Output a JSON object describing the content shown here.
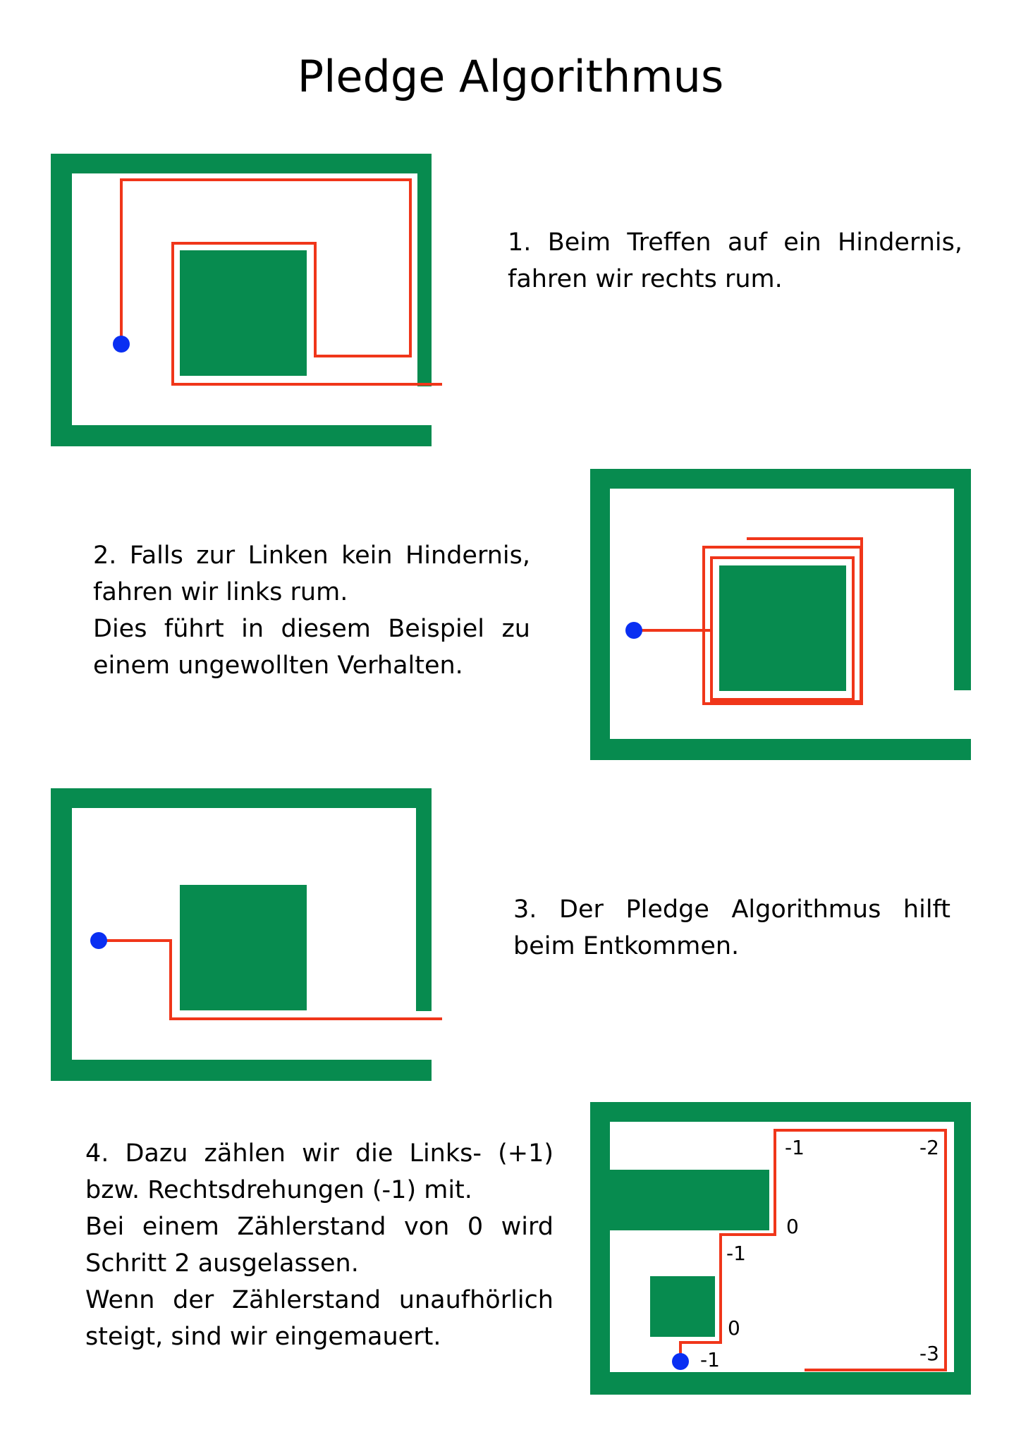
{
  "title": "Pledge Algorithmus",
  "colors": {
    "wall": "#078b4f",
    "path": "#f0361a",
    "start": "#0a2ff2",
    "background": "#ffffff"
  },
  "steps": [
    {
      "lines": [
        "1. Beim Treffen auf ein Hindernis,",
        "fahren wir rechts rum."
      ]
    },
    {
      "lines": [
        "2. Falls zur Linken kein Hindernis,",
        "fahren wir links rum.",
        "Dies führt in diesem Beispiel zu",
        "einem ungewollten Verhalten."
      ]
    },
    {
      "lines": [
        "3. Der Pledge Algorithmus hilft",
        "beim Entkommen."
      ]
    },
    {
      "lines": [
        "4. Dazu zählen wir die Links- (+1)",
        "bzw. Rechtsdrehungen (-1) mit.",
        "Bei einem Zählerstand von 0 wird",
        "Schritt 2 ausgelassen.",
        "Wenn der Zählerstand unaufhörlich",
        "steigt, sind wir eingemauert."
      ]
    }
  ],
  "counter_labels": [
    "-1",
    "-2",
    "0",
    "-1",
    "0",
    "-1",
    "-3"
  ]
}
